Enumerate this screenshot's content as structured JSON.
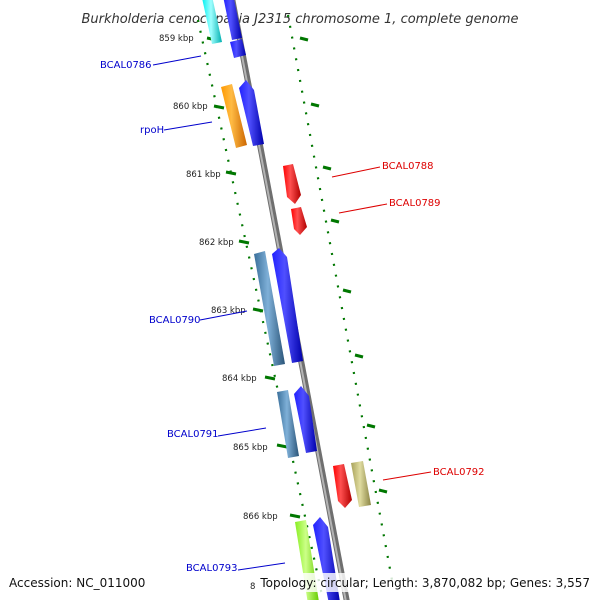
{
  "title": "Burkholderia cenocepacia J2315 chromosome 1, complete genome",
  "accession": "Accession: NC_011000",
  "topology": "Topology: circular; Length: 3,870,082 bp; Genes: 3,557",
  "colors": {
    "tick": "#007700",
    "backbone": "#888888",
    "forward_label": "#0000cc",
    "reverse_label": "#dd0000"
  },
  "ticks": [
    "859 kbp",
    "860 kbp",
    "861 kbp",
    "862 kbp",
    "863 kbp",
    "864 kbp",
    "865 kbp",
    "866 kbp"
  ],
  "genes": [
    {
      "name": "BCAL0786",
      "strand": "forward",
      "category_color": "#00e6e6"
    },
    {
      "name": "rpoH",
      "strand": "forward",
      "category_color": "#ff9900"
    },
    {
      "name": "BCAL0788",
      "strand": "reverse",
      "category_color": "#ff0000"
    },
    {
      "name": "BCAL0789",
      "strand": "reverse",
      "category_color": "#ff0000"
    },
    {
      "name": "BCAL0790",
      "strand": "forward",
      "category_color": "#4682b4"
    },
    {
      "name": "BCAL0791",
      "strand": "forward",
      "category_color": "#4682b4"
    },
    {
      "name": "BCAL0792",
      "strand": "reverse",
      "category_color": "#bdb76b"
    },
    {
      "name": "BCAL0793",
      "strand": "forward",
      "category_color": "#99ff33"
    }
  ]
}
